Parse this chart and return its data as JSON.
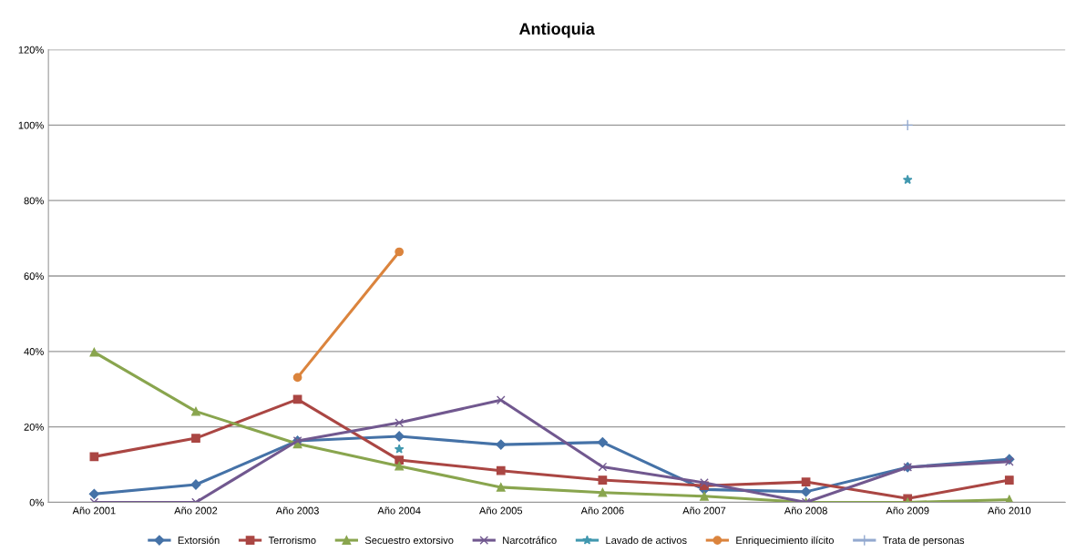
{
  "chart_data": {
    "type": "line",
    "title": "Antioquia",
    "categories": [
      "Año 2001",
      "Año 2002",
      "Año 2003",
      "Año 2004",
      "Año 2005",
      "Año 2006",
      "Año 2007",
      "Año 2008",
      "Año 2009",
      "Año 2010"
    ],
    "series": [
      {
        "name": "Extorsión",
        "color": "#4572a7",
        "marker": "diamond",
        "values": [
          2.2,
          4.7,
          16.3,
          17.5,
          15.3,
          15.9,
          3.4,
          2.8,
          9.3,
          11.4
        ]
      },
      {
        "name": "Terrorismo",
        "color": "#aa4643",
        "marker": "square",
        "values": [
          12.1,
          17.0,
          27.3,
          11.2,
          8.4,
          5.9,
          4.4,
          5.4,
          1.0,
          5.9
        ]
      },
      {
        "name": "Secuestro extorsivo",
        "color": "#89a54e",
        "marker": "triangle",
        "values": [
          39.8,
          24.1,
          15.5,
          9.6,
          4.0,
          2.6,
          1.6,
          0,
          0,
          0.7
        ]
      },
      {
        "name": "Narcotráfico",
        "color": "#71588f",
        "marker": "cross",
        "values": [
          0,
          0,
          16.3,
          21.1,
          27.1,
          9.4,
          5.2,
          0,
          9.3,
          10.8
        ]
      },
      {
        "name": "Lavado de activos",
        "color": "#4198af",
        "marker": "star",
        "values": [
          null,
          null,
          null,
          14.1,
          null,
          null,
          null,
          null,
          85.5,
          null
        ]
      },
      {
        "name": "Enriquecimiento ilícito",
        "color": "#db843d",
        "marker": "circle",
        "values": [
          null,
          null,
          33.1,
          66.4,
          null,
          null,
          null,
          null,
          null,
          null
        ]
      },
      {
        "name": "Trata de personas",
        "color": "#93a9cf",
        "marker": "plus",
        "values": [
          null,
          null,
          null,
          null,
          null,
          null,
          null,
          null,
          100,
          null
        ]
      }
    ],
    "ylim": [
      0,
      120
    ],
    "yticks": [
      {
        "value": 0,
        "label": "0%"
      },
      {
        "value": 20,
        "label": "20%"
      },
      {
        "value": 40,
        "label": "40%"
      },
      {
        "value": 60,
        "label": "60%"
      },
      {
        "value": 80,
        "label": "80%"
      },
      {
        "value": 100,
        "label": "100%"
      },
      {
        "value": 120,
        "label": "120%"
      }
    ],
    "grid": "y",
    "legend": "bottom",
    "line_style": "solid"
  }
}
